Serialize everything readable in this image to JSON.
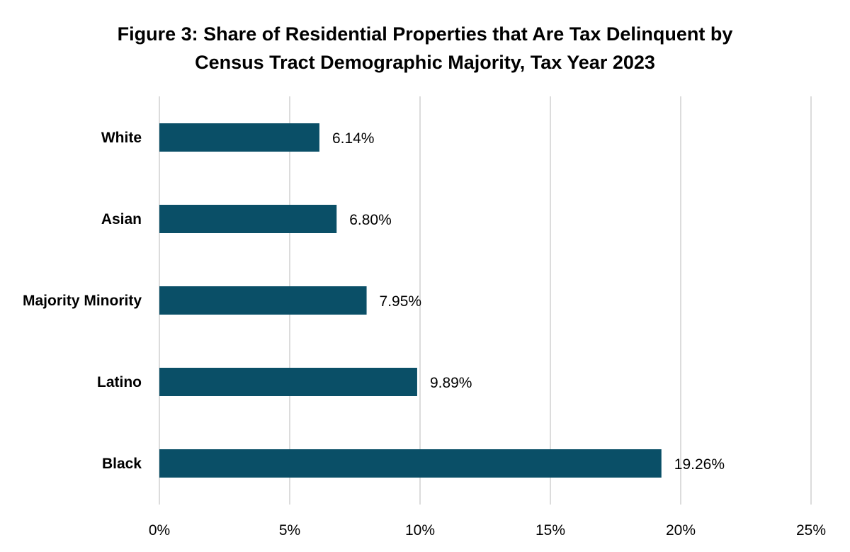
{
  "chart_data": {
    "type": "bar",
    "orientation": "horizontal",
    "title_lines": [
      "Figure 3: Share of Residential Properties that Are Tax Delinquent by",
      "Census Tract Demographic Majority, Tax Year 2023"
    ],
    "categories": [
      "White",
      "Asian",
      "Majority Minority",
      "Latino",
      "Black"
    ],
    "values": [
      6.14,
      6.8,
      7.95,
      9.89,
      19.26
    ],
    "data_labels": [
      "6.14%",
      "6.80%",
      "7.95%",
      "9.89%",
      "19.26%"
    ],
    "xlim": [
      0,
      25
    ],
    "x_ticks": [
      0,
      5,
      10,
      15,
      20,
      25
    ],
    "x_tick_labels": [
      "0%",
      "5%",
      "10%",
      "15%",
      "20%",
      "25%"
    ],
    "bar_color": "#0a4f67",
    "grid": true,
    "legend": "none",
    "xlabel": "",
    "ylabel": ""
  }
}
